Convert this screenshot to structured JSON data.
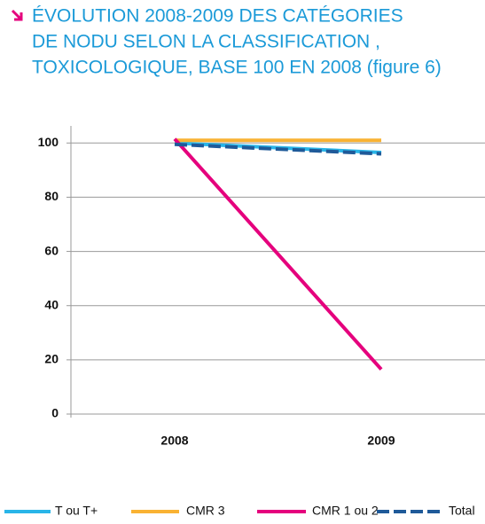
{
  "chart_data": {
    "type": "line",
    "title": [
      "ÉVOLUTION 2008-2009 DES CATÉGORIES",
      "DE NODU SELON LA CLASSIFICATION ,",
      "TOXICOLOGIQUE, BASE 100 EN 2008 (figure 6)"
    ],
    "categories": [
      "2008",
      "2009"
    ],
    "series": [
      {
        "name": "T ou T+",
        "color": "#29b5e8",
        "values": [
          100,
          96.5
        ]
      },
      {
        "name": "CMR 3",
        "color": "#f9b233",
        "values": [
          101,
          101
        ]
      },
      {
        "name": "CMR 1 ou 2",
        "color": "#e5007d",
        "values": [
          101.5,
          16.5
        ]
      },
      {
        "name": "Total",
        "color": "#1f5a99",
        "values": [
          99.5,
          96
        ]
      }
    ],
    "ylim": [
      0,
      105
    ],
    "yticks": [
      0,
      20,
      40,
      60,
      80,
      100
    ],
    "grid": true,
    "legend": "bottom"
  }
}
